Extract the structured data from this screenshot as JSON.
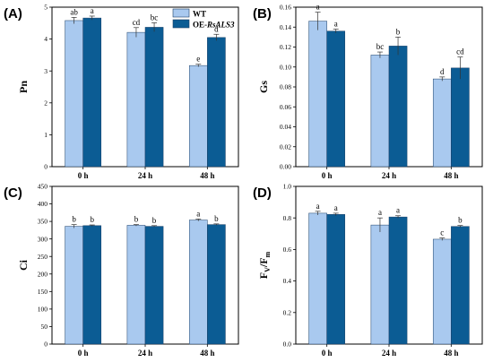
{
  "colors": {
    "wt": "#a9c9ef",
    "oe": "#0b5c94",
    "edge": "#1c3f66"
  },
  "legend": {
    "wt": "WT",
    "oe_prefix": "OE-",
    "oe_gene": "RsALS3"
  },
  "chart_data": [
    {
      "panel": "(A)",
      "type": "bar",
      "ylabel": "Pn",
      "categories": [
        "0 h",
        "24 h",
        "48 h"
      ],
      "ylim": [
        0,
        5
      ],
      "yticks": [
        "0",
        "1",
        "2",
        "3",
        "4",
        "5"
      ],
      "grid": false,
      "legend": "top-center",
      "series": [
        {
          "name": "WT",
          "values": [
            4.58,
            4.21,
            3.17
          ],
          "errors": [
            0.1,
            0.15,
            0.04
          ],
          "labels": [
            "ab",
            "cd",
            "e"
          ]
        },
        {
          "name": "OE-RsALS3",
          "values": [
            4.66,
            4.37,
            4.05
          ],
          "errors": [
            0.06,
            0.14,
            0.1
          ],
          "labels": [
            "a",
            "bc",
            "d"
          ]
        }
      ]
    },
    {
      "panel": "(B)",
      "type": "bar",
      "ylabel": "Gs",
      "categories": [
        "0 h",
        "24 h",
        "48 h"
      ],
      "ylim": [
        0,
        0.16
      ],
      "yticks": [
        "0.00",
        "0.02",
        "0.04",
        "0.06",
        "0.08",
        "0.10",
        "0.12",
        "0.14",
        "0.16"
      ],
      "grid": false,
      "series": [
        {
          "name": "WT",
          "values": [
            0.146,
            0.112,
            0.088
          ],
          "errors": [
            0.009,
            0.003,
            0.002
          ],
          "labels": [
            "a",
            "bc",
            "d"
          ]
        },
        {
          "name": "OE-RsALS3",
          "values": [
            0.136,
            0.121,
            0.099
          ],
          "errors": [
            0.002,
            0.009,
            0.011
          ],
          "labels": [
            "a",
            "b",
            "cd"
          ]
        }
      ]
    },
    {
      "panel": "(C)",
      "type": "bar",
      "ylabel": "Ci",
      "categories": [
        "0 h",
        "24 h",
        "48 h"
      ],
      "ylim": [
        0,
        450
      ],
      "yticks": [
        "0",
        "50",
        "100",
        "150",
        "200",
        "250",
        "300",
        "350",
        "400",
        "450"
      ],
      "grid": false,
      "series": [
        {
          "name": "WT",
          "values": [
            336,
            339,
            354
          ],
          "errors": [
            5,
            2,
            3
          ],
          "labels": [
            "b",
            "b",
            "a"
          ]
        },
        {
          "name": "OE-RsALS3",
          "values": [
            338,
            336,
            341
          ],
          "errors": [
            2,
            2,
            2
          ],
          "labels": [
            "b",
            "b",
            "b"
          ]
        }
      ]
    },
    {
      "panel": "(D)",
      "type": "bar",
      "ylabel_main": "F",
      "ylabel_sub1": "V",
      "ylabel_mid": "/F",
      "ylabel_sub2": "m",
      "categories": [
        "0 h",
        "24 h",
        "48 h"
      ],
      "ylim": [
        0,
        1.0
      ],
      "yticks": [
        "0.0",
        "0.2",
        "0.4",
        "0.6",
        "0.8",
        "1.0"
      ],
      "grid": false,
      "series": [
        {
          "name": "WT",
          "values": [
            0.83,
            0.755,
            0.665
          ],
          "errors": [
            0.012,
            0.045,
            0.008
          ],
          "labels": [
            "a",
            "a",
            "c"
          ]
        },
        {
          "name": "OE-RsALS3",
          "values": [
            0.822,
            0.806,
            0.746
          ],
          "errors": [
            0.008,
            0.008,
            0.006
          ],
          "labels": [
            "a",
            "a",
            "b"
          ]
        }
      ]
    }
  ]
}
